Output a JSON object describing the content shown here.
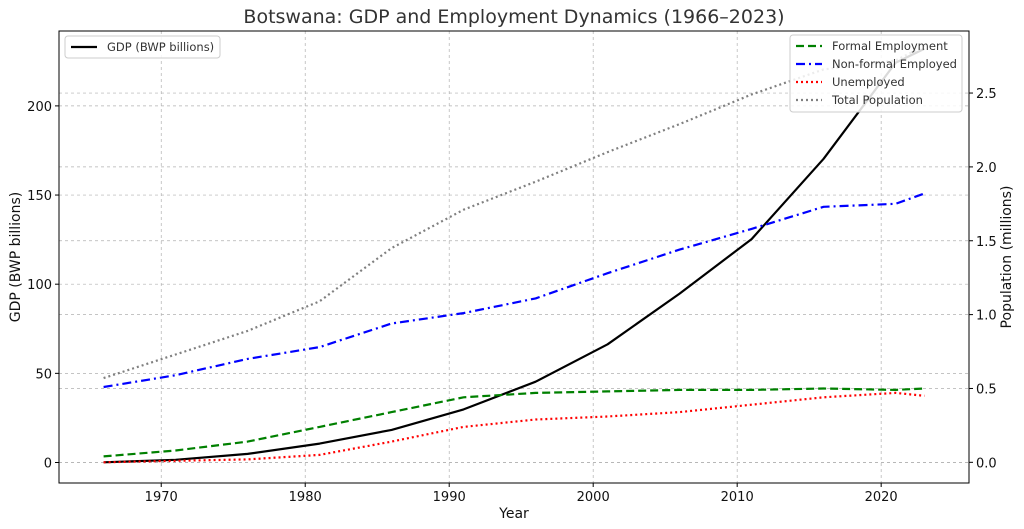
{
  "chart_data": {
    "type": "line",
    "title": "Botswana: GDP and Employment Dynamics (1966–2023)",
    "xlabel": "Year",
    "ylabel_left": "GDP (BWP billions)",
    "ylabel_right": "Population (millions)",
    "xlim": [
      1962.9,
      2026.1
    ],
    "ylim_left": [
      -11.5,
      242
    ],
    "ylim_right": [
      -0.14,
      2.92
    ],
    "x_ticks": [
      1970,
      1980,
      1990,
      2000,
      2010,
      2020
    ],
    "y_ticks_left": [
      0,
      50,
      100,
      150,
      200
    ],
    "y_ticks_right": [
      0.0,
      0.5,
      1.0,
      1.5,
      2.0,
      2.5
    ],
    "grid": true,
    "legend_left": {
      "position": "top-left",
      "entries": [
        "GDP (BWP billions)"
      ]
    },
    "legend_right": {
      "position": "top-right",
      "entries": [
        "Formal Employment",
        "Non-formal Employed",
        "Unemployed",
        "Total Population"
      ]
    },
    "series": [
      {
        "name": "GDP (BWP billions)",
        "axis": "left",
        "color": "#000000",
        "dash": "solid",
        "x": [
          1966,
          1971,
          1976,
          1981,
          1986,
          1991,
          1996,
          2001,
          2006,
          2011,
          2016,
          2021,
          2023
        ],
        "y": [
          0.1,
          1.5,
          4.8,
          10.6,
          18.3,
          29.8,
          45.3,
          66.3,
          94.7,
          125.3,
          170.3,
          224.2,
          232
        ]
      },
      {
        "name": "Formal Employment",
        "axis": "right",
        "color": "#008000",
        "dash": "dashed",
        "x": [
          1966,
          1971,
          1976,
          1981,
          1986,
          1991,
          1996,
          2001,
          2006,
          2011,
          2016,
          2021,
          2023
        ],
        "y": [
          0.04,
          0.08,
          0.14,
          0.24,
          0.34,
          0.44,
          0.47,
          0.48,
          0.49,
          0.49,
          0.5,
          0.49,
          0.5
        ]
      },
      {
        "name": "Non-formal Employed",
        "axis": "right",
        "color": "#0000ff",
        "dash": "dashdot",
        "x": [
          1966,
          1971,
          1976,
          1981,
          1986,
          1991,
          1996,
          2001,
          2006,
          2011,
          2016,
          2021,
          2023
        ],
        "y": [
          0.51,
          0.59,
          0.7,
          0.78,
          0.94,
          1.01,
          1.11,
          1.28,
          1.44,
          1.58,
          1.73,
          1.75,
          1.82
        ]
      },
      {
        "name": "Unemployed",
        "axis": "right",
        "color": "#ff0000",
        "dash": "dotted",
        "x": [
          1966,
          1971,
          1976,
          1981,
          1986,
          1991,
          1996,
          2001,
          2006,
          2011,
          2016,
          2021,
          2023
        ],
        "y": [
          0.0,
          0.01,
          0.02,
          0.05,
          0.14,
          0.24,
          0.29,
          0.31,
          0.34,
          0.39,
          0.44,
          0.47,
          0.45
        ]
      },
      {
        "name": "Total Population",
        "axis": "right",
        "color": "#808080",
        "dash": "dotted",
        "x": [
          1966,
          1971,
          1976,
          1981,
          1986,
          1991,
          1996,
          2001,
          2006,
          2011,
          2016,
          2021,
          2023
        ],
        "y": [
          0.57,
          0.73,
          0.89,
          1.09,
          1.45,
          1.71,
          1.9,
          2.1,
          2.29,
          2.49,
          2.66,
          2.72,
          2.82
        ]
      }
    ]
  }
}
